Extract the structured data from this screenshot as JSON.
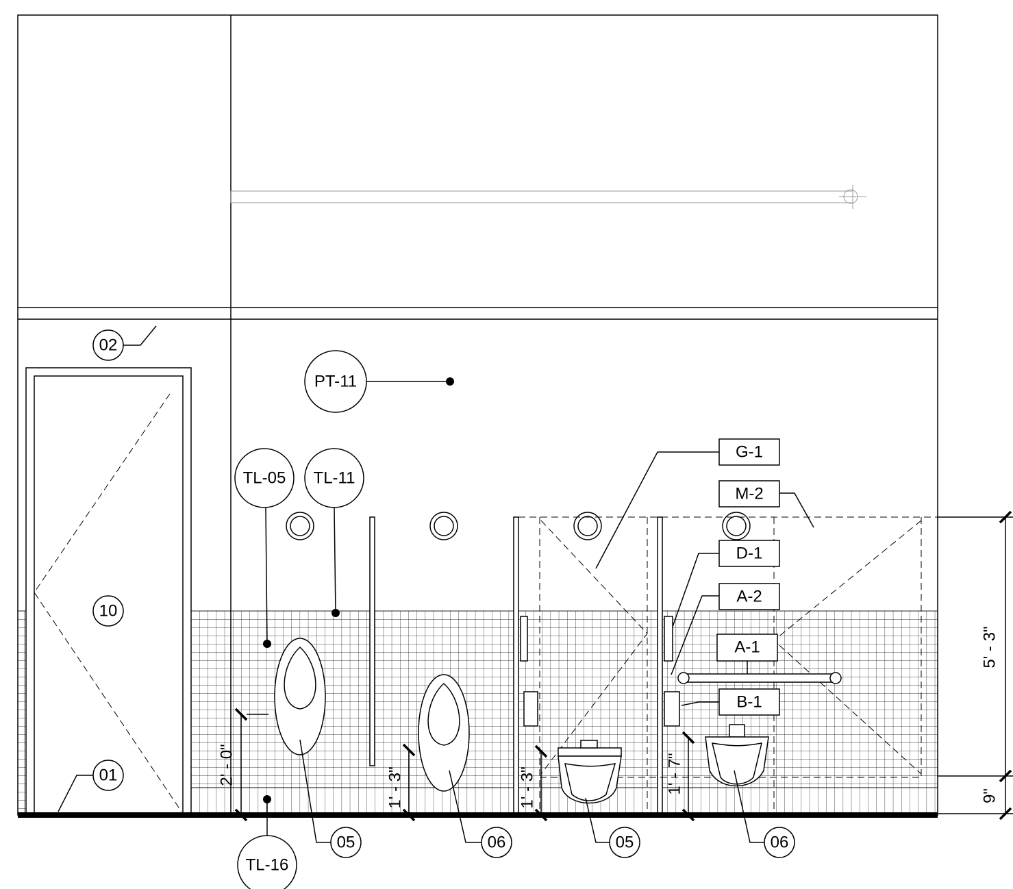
{
  "circle_tags": [
    "02",
    "PT-11",
    "10",
    "TL-05",
    "TL-11",
    "01",
    "05",
    "06",
    "05",
    "06",
    "TL-16"
  ],
  "box_tags": [
    "G-1",
    "M-2",
    "D-1",
    "A-2",
    "A-1",
    "B-1"
  ],
  "dimensions": [
    "2' - 0\"",
    "1' - 3\"",
    "1' - 3\"",
    "1' - 7\"",
    "5' - 3\"",
    "9\""
  ]
}
